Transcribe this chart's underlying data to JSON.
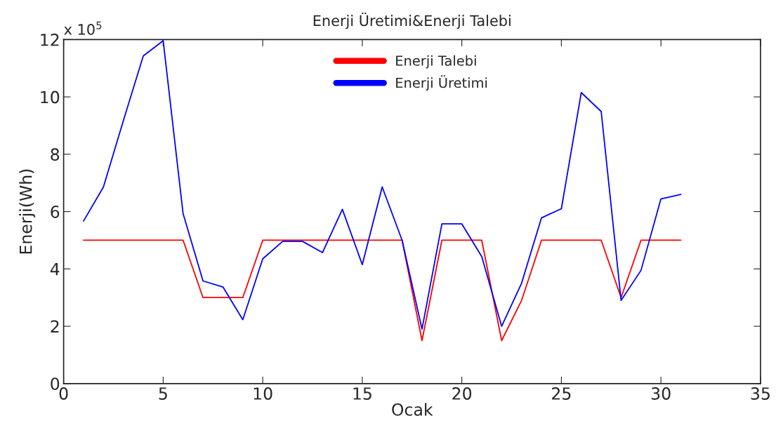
{
  "chart_data": {
    "type": "line",
    "title": "Enerji Üretimi&Enerji Talebi",
    "xlabel": "Ocak",
    "ylabel": "Enerji(Wh)",
    "annotations": [
      "x 10$^{5}$"
    ],
    "x": [
      1,
      2,
      3,
      4,
      5,
      6,
      7,
      8,
      9,
      10,
      11,
      12,
      13,
      14,
      15,
      16,
      17,
      18,
      19,
      20,
      21,
      22,
      23,
      24,
      25,
      26,
      27,
      28,
      29,
      30,
      31
    ],
    "series": [
      {
        "name": "Enerji Talebi",
        "color": "#ff0000",
        "values": [
          5,
          5,
          5,
          5,
          5,
          5,
          3,
          3,
          3,
          5,
          5,
          5,
          5,
          5,
          5,
          5,
          5,
          1.5,
          5,
          5,
          5,
          1.5,
          2.9,
          5,
          5,
          5,
          5,
          3,
          5,
          5,
          5
        ]
      },
      {
        "name": "Enerji Üretimi",
        "color": "#0000ff",
        "values": [
          5.67,
          6.86,
          9.17,
          11.43,
          11.96,
          5.93,
          3.58,
          3.37,
          2.23,
          4.35,
          4.96,
          4.96,
          4.57,
          6.08,
          4.15,
          6.86,
          5.0,
          1.9,
          5.57,
          5.57,
          4.43,
          2.0,
          3.5,
          5.78,
          6.1,
          10.15,
          9.49,
          2.9,
          3.95,
          6.44,
          6.6
        ]
      }
    ],
    "xlim": [
      0,
      35
    ],
    "xticks": [
      0,
      5,
      10,
      15,
      20,
      25,
      30,
      35
    ],
    "ylim": [
      0,
      12
    ],
    "yticks": [
      0,
      2,
      4,
      6,
      8,
      10,
      12
    ],
    "grid": false,
    "legend": "top",
    "marker": "none",
    "line_style": "solid"
  }
}
